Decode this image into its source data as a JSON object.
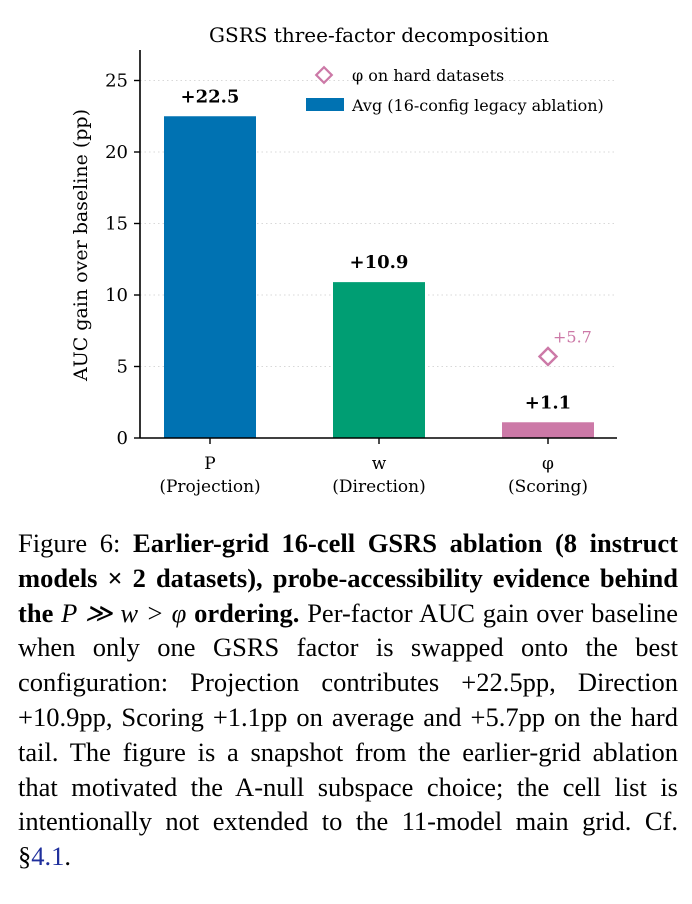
{
  "chart_data": {
    "type": "bar",
    "title": "GSRS three-factor decomposition",
    "ylabel": "AUC gain over baseline (pp)",
    "xlabel": "",
    "ylim": [
      0,
      27
    ],
    "yticks": [
      0,
      5,
      10,
      15,
      20,
      25
    ],
    "grid": "horizontal dotted",
    "legend_position": "top-right",
    "categories": [
      {
        "symbol": "P",
        "name": "(Projection)"
      },
      {
        "symbol": "w",
        "name": "(Direction)"
      },
      {
        "symbol": "φ",
        "name": "(Scoring)"
      }
    ],
    "series": [
      {
        "name": "Avg (16-config legacy ablation)",
        "values": [
          22.5,
          10.9,
          1.1
        ],
        "labels": [
          "+22.5",
          "+10.9",
          "+1.1"
        ],
        "colors": [
          "#0072b2",
          "#009e73",
          "#cc79a7"
        ]
      },
      {
        "name": "φ on hard datasets",
        "marker": "diamond-open",
        "color": "#cc79a7",
        "points": [
          {
            "category_index": 2,
            "value": 5.7,
            "label": "+5.7"
          }
        ]
      }
    ]
  },
  "caption": {
    "lead": "Figure 6: ",
    "bold_part1": "Earlier-grid 16-cell GSRS ablation (8 instruct models × 2 datasets), probe-accessibility evidence behind the ",
    "math": "P ≫ w > φ",
    "bold_part2": " ordering.",
    "body": " Per-factor AUC gain over baseline when only one GSRS factor is swapped onto the best configuration: Projection contributes +22.5pp, Direction +10.9pp, Scoring +1.1pp on average and +5.7pp on the hard tail. The figure is a snapshot from the earlier-grid ablation that motivated the A-null subspace choice; the cell list is intentionally not extended to the 11-model main grid. Cf. §",
    "ref": "4.1",
    "tail": "."
  }
}
